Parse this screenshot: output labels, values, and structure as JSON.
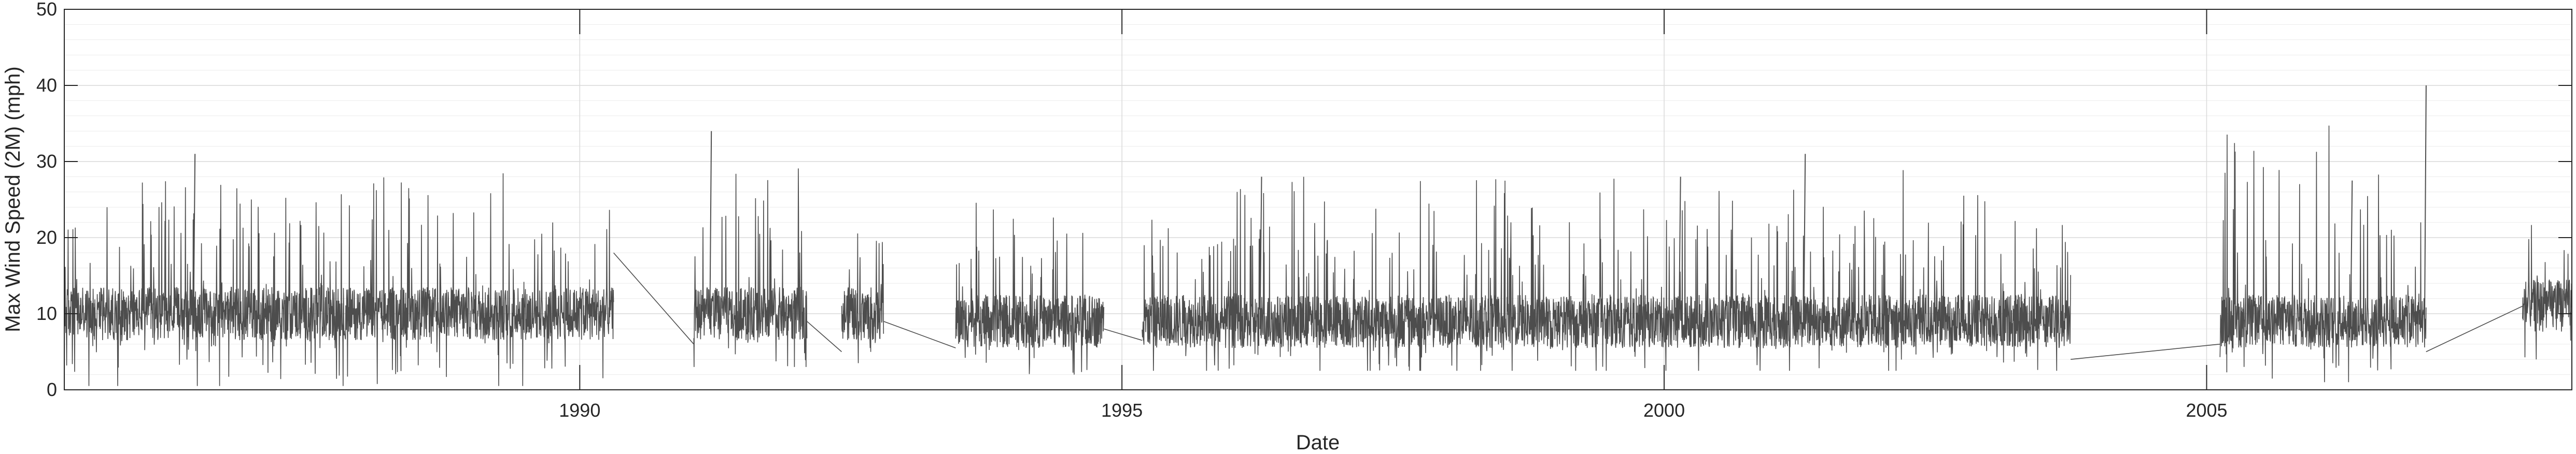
{
  "chart_data": {
    "type": "line",
    "title": "",
    "xlabel": "Date",
    "ylabel": "Max Wind Speed (2M) (mph)",
    "xlim": [
      "1985-04-01",
      "2008-05-15"
    ],
    "ylim": [
      0,
      50
    ],
    "x_tick_labels": [
      "1990",
      "1995",
      "2000",
      "2005"
    ],
    "y_tick_labels": [
      "0",
      "10",
      "20",
      "30",
      "40",
      "50"
    ],
    "grid": true,
    "line_color": "#4d4d4d",
    "series": [
      {
        "segments": [
          {
            "start": "1985-04-01",
            "end": "1990-04-25",
            "median": 10,
            "range": [
              0.5,
              31
            ]
          },
          {
            "start": "1991-01-20",
            "end": "1992-02-05",
            "median": 10,
            "range": [
              3,
              34
            ]
          },
          {
            "start": "1992-06-01",
            "end": "1992-10-20",
            "median": 10,
            "range": [
              3.5,
              22
            ]
          },
          {
            "start": "1993-06-20",
            "end": "1994-11-01",
            "median": 9,
            "range": [
              2,
              27
            ]
          },
          {
            "start": "1995-03-10",
            "end": "2003-10-01",
            "median": 9,
            "range": [
              2.5,
              31
            ]
          },
          {
            "start": "2005-02-15",
            "end": "2007-01-10",
            "median": 9,
            "range": [
              1,
              40
            ]
          },
          {
            "start": "2007-12-01",
            "end": "2008-05-15",
            "median": 11,
            "range": [
              4,
              26
            ]
          }
        ],
        "gap_connectors": [
          [
            [
              "1990-04-25",
              18
            ],
            [
              "1991-01-20",
              6
            ]
          ],
          [
            [
              "1992-02-05",
              9
            ],
            [
              "1992-06-01",
              5
            ]
          ],
          [
            [
              "1992-10-20",
              9
            ],
            [
              "1993-06-20",
              5.5
            ]
          ],
          [
            [
              "1994-11-01",
              8
            ],
            [
              "1995-03-10",
              6.5
            ]
          ],
          [
            [
              "2003-10-01",
              4
            ],
            [
              "2005-02-15",
              6
            ]
          ],
          [
            [
              "2007-01-10",
              5
            ],
            [
              "2007-12-01",
              11
            ]
          ]
        ],
        "peaks": [
          [
            "1986-06-10",
            31
          ],
          [
            "1991-03-15",
            34
          ],
          [
            "1996-04-10",
            28
          ],
          [
            "2000-02-20",
            28
          ],
          [
            "2001-04-15",
            31
          ],
          [
            "2006-05-01",
            27.5
          ],
          [
            "2007-01-05",
            40
          ]
        ]
      }
    ]
  }
}
